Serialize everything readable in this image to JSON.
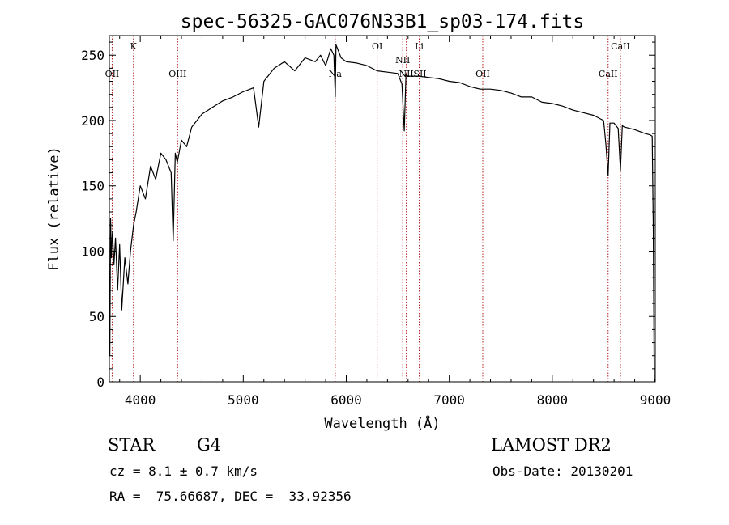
{
  "chart_data": {
    "type": "line",
    "title": "spec-56325-GAC076N33B1_sp03-174.fits",
    "xlabel": "Wavelength (Å)",
    "ylabel": "Flux (relative)",
    "xlim": [
      3700,
      9000
    ],
    "ylim": [
      0,
      265
    ],
    "x_ticks": [
      4000,
      5000,
      6000,
      7000,
      8000,
      9000
    ],
    "y_ticks": [
      0,
      50,
      100,
      150,
      200,
      250
    ],
    "colors": {
      "spectrum": "#000000",
      "line_markers": "#b22222"
    },
    "series": [
      {
        "x": [
          3700,
          3705,
          3712,
          3720,
          3730,
          3745,
          3760,
          3780,
          3800,
          3820,
          3850,
          3880,
          3905,
          3920,
          3935,
          3960,
          4000,
          4050,
          4100,
          4150,
          4200,
          4250,
          4300,
          4320,
          4340,
          4360,
          4400,
          4450,
          4500,
          4600,
          4700,
          4800,
          4900,
          5000,
          5100,
          5150,
          5200,
          5300,
          5400,
          5500,
          5600,
          5700,
          5750,
          5800,
          5850,
          5880,
          5893,
          5900,
          5950,
          6000,
          6100,
          6200,
          6300,
          6400,
          6500,
          6540,
          6563,
          6580,
          6600,
          6700,
          6800,
          6900,
          7000,
          7100,
          7200,
          7300,
          7400,
          7500,
          7600,
          7700,
          7800,
          7900,
          8000,
          8100,
          8200,
          8300,
          8400,
          8498,
          8520,
          8542,
          8560,
          8600,
          8640,
          8662,
          8680,
          8700,
          8800,
          8900,
          8950,
          8970,
          8980,
          8985,
          8990,
          9000
        ],
        "y": [
          80,
          20,
          125,
          95,
          115,
          90,
          110,
          70,
          105,
          55,
          95,
          75,
          100,
          110,
          120,
          130,
          150,
          140,
          165,
          155,
          175,
          170,
          160,
          108,
          175,
          168,
          185,
          180,
          195,
          205,
          210,
          215,
          218,
          222,
          225,
          195,
          230,
          240,
          245,
          238,
          248,
          245,
          250,
          242,
          255,
          250,
          218,
          258,
          248,
          245,
          244,
          242,
          238,
          237,
          236,
          228,
          192,
          235,
          234,
          234,
          233,
          232,
          230,
          229,
          226,
          224,
          224,
          223,
          221,
          218,
          218,
          214,
          213,
          211,
          208,
          206,
          204,
          200,
          182,
          158,
          198,
          198,
          194,
          162,
          196,
          195,
          193,
          190,
          189,
          188,
          120,
          60,
          2,
          0
        ]
      }
    ],
    "line_markers": [
      {
        "name": "OII",
        "x": 3727,
        "row": 2
      },
      {
        "name": "K",
        "x": 3934,
        "row": 1
      },
      {
        "name": "OIII",
        "x": 4363,
        "row": 2
      },
      {
        "name": "Na",
        "x": 5893,
        "row": 2
      },
      {
        "name": "OI",
        "x": 6300,
        "row": 1
      },
      {
        "name": "NII",
        "x": 6548,
        "row": 3
      },
      {
        "name": "NII",
        "x": 6583,
        "row": 4
      },
      {
        "name": "Li",
        "x": 6708,
        "row": 1
      },
      {
        "name": "SII",
        "x": 6716,
        "row": 4
      },
      {
        "name": "OII",
        "x": 7325,
        "row": 2
      },
      {
        "name": "CaII",
        "x": 8542,
        "row": 2
      },
      {
        "name": "CaII",
        "x": 8662,
        "row": 1
      }
    ]
  },
  "info": {
    "object_class": "STAR",
    "subclass": "G4",
    "survey": "LAMOST DR2",
    "redshift_text": "cz = 8.1 ± 0.7 km/s",
    "obs_date": "Obs-Date: 20130201",
    "coords": "RA =  75.66687, DEC =  33.92356"
  }
}
